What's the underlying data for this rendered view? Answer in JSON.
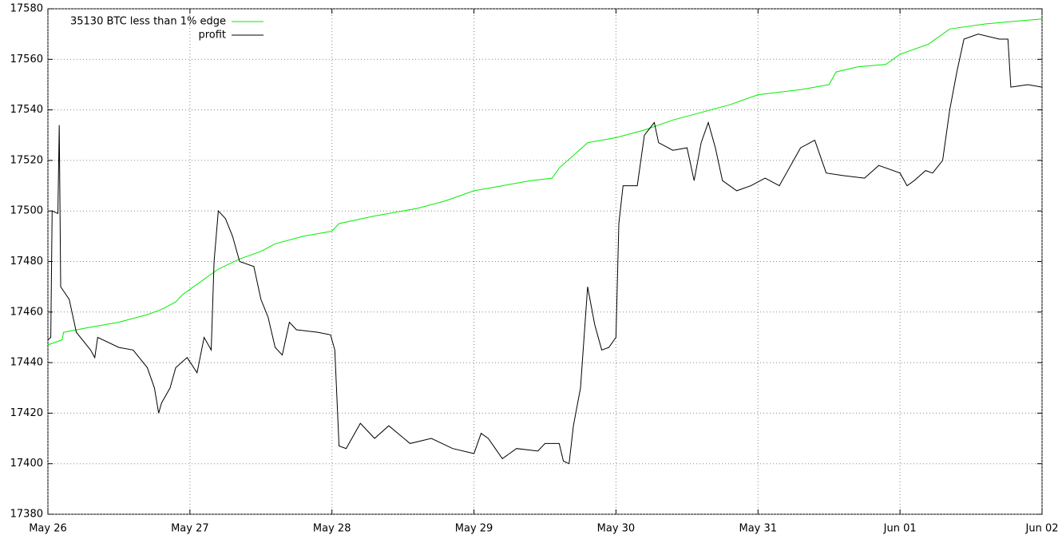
{
  "chart_data": {
    "type": "line",
    "xlim": [
      0,
      7
    ],
    "xticks": [
      {
        "value": 0,
        "label": "May 26"
      },
      {
        "value": 1,
        "label": "May 27"
      },
      {
        "value": 2,
        "label": "May 28"
      },
      {
        "value": 3,
        "label": "May 29"
      },
      {
        "value": 4,
        "label": "May 30"
      },
      {
        "value": 5,
        "label": "May 31"
      },
      {
        "value": 6,
        "label": "Jun 01"
      },
      {
        "value": 7,
        "label": "Jun 02"
      }
    ],
    "ylim": [
      17380,
      17580
    ],
    "yticks": [
      17380,
      17400,
      17420,
      17440,
      17460,
      17480,
      17500,
      17520,
      17540,
      17560,
      17580
    ],
    "grid": true,
    "legend": "top left",
    "series": [
      {
        "name": "35130 BTC less than 1% edge",
        "color": "#00ee00",
        "x": [
          0,
          0.1,
          0.11,
          0.3,
          0.5,
          0.7,
          0.8,
          0.9,
          0.95,
          1.0,
          1.1,
          1.2,
          1.35,
          1.5,
          1.6,
          1.8,
          2.0,
          2.05,
          2.3,
          2.6,
          2.8,
          3.0,
          3.2,
          3.4,
          3.55,
          3.6,
          3.7,
          3.8,
          4.0,
          4.2,
          4.4,
          4.6,
          4.8,
          5.0,
          5.3,
          5.5,
          5.55,
          5.7,
          5.9,
          6.0,
          6.2,
          6.35,
          6.6,
          6.8,
          7.0
        ],
        "values": [
          17447,
          17449,
          17452,
          17454,
          17456,
          17459,
          17461,
          17464,
          17467,
          17469,
          17473,
          17477,
          17481,
          17484,
          17487,
          17490,
          17492,
          17495,
          17498,
          17501,
          17504,
          17508,
          17510,
          17512,
          17513,
          17517,
          17522,
          17527,
          17529,
          17532,
          17536,
          17539,
          17542,
          17546,
          17548,
          17550,
          17555,
          17557,
          17558,
          17562,
          17566,
          17572,
          17574,
          17575,
          17576
        ]
      },
      {
        "name": "profit",
        "color": "#000000",
        "x": [
          0,
          0.02,
          0.03,
          0.07,
          0.08,
          0.09,
          0.15,
          0.2,
          0.3,
          0.33,
          0.35,
          0.5,
          0.6,
          0.7,
          0.75,
          0.78,
          0.8,
          0.86,
          0.9,
          0.98,
          1.05,
          1.1,
          1.15,
          1.17,
          1.2,
          1.25,
          1.3,
          1.35,
          1.45,
          1.5,
          1.55,
          1.6,
          1.65,
          1.7,
          1.75,
          1.9,
          1.99,
          2.02,
          2.05,
          2.1,
          2.2,
          2.3,
          2.4,
          2.55,
          2.7,
          2.85,
          3.0,
          3.05,
          3.1,
          3.15,
          3.2,
          3.3,
          3.45,
          3.5,
          3.6,
          3.63,
          3.67,
          3.7,
          3.75,
          3.8,
          3.85,
          3.9,
          3.95,
          4.0,
          4.02,
          4.05,
          4.15,
          4.2,
          4.27,
          4.3,
          4.4,
          4.5,
          4.55,
          4.6,
          4.65,
          4.7,
          4.75,
          4.85,
          4.95,
          5.05,
          5.15,
          5.3,
          5.4,
          5.48,
          5.6,
          5.75,
          5.85,
          6.0,
          6.05,
          6.1,
          6.18,
          6.23,
          6.3,
          6.35,
          6.4,
          6.45,
          6.55,
          6.7,
          6.76,
          6.78,
          6.9,
          7.0
        ],
        "values": [
          17449,
          17450,
          17500,
          17499,
          17534,
          17470,
          17465,
          17452,
          17445,
          17442,
          17450,
          17446,
          17445,
          17438,
          17430,
          17420,
          17424,
          17430,
          17438,
          17442,
          17436,
          17450,
          17445,
          17480,
          17500,
          17497,
          17490,
          17480,
          17478,
          17465,
          17458,
          17446,
          17443,
          17456,
          17453,
          17452,
          17451,
          17445,
          17407,
          17406,
          17416,
          17410,
          17415,
          17408,
          17410,
          17406,
          17404,
          17412,
          17410,
          17406,
          17402,
          17406,
          17405,
          17408,
          17408,
          17401,
          17400,
          17415,
          17430,
          17470,
          17455,
          17445,
          17446,
          17450,
          17495,
          17510,
          17510,
          17530,
          17535,
          17527,
          17524,
          17525,
          17512,
          17527,
          17535,
          17525,
          17512,
          17508,
          17510,
          17513,
          17510,
          17525,
          17528,
          17515,
          17514,
          17513,
          17518,
          17515,
          17510,
          17512,
          17516,
          17515,
          17520,
          17540,
          17555,
          17568,
          17570,
          17568,
          17568,
          17549,
          17550,
          17549
        ]
      }
    ]
  }
}
